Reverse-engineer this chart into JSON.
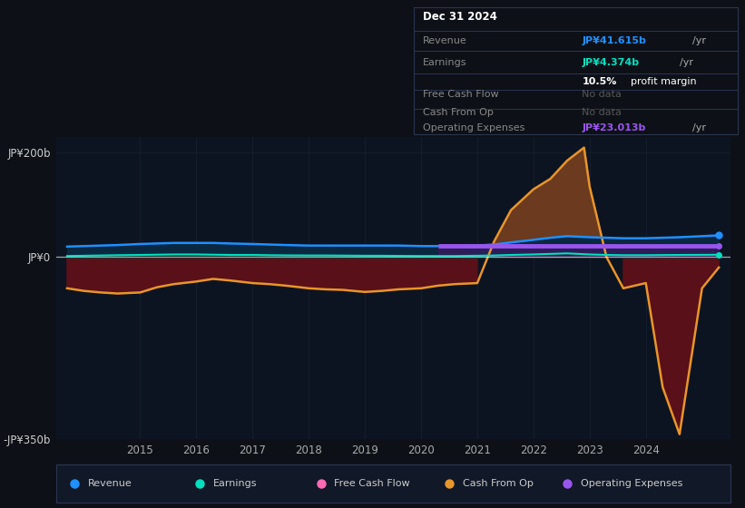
{
  "bg_color": "#0d1117",
  "plot_bg": "#0d1421",
  "ylim": [
    -350,
    230
  ],
  "yticks": [
    -350,
    0,
    200
  ],
  "ytick_labels": [
    "-JP¥350b",
    "JP¥0",
    "JP¥200b"
  ],
  "xlim": [
    2013.5,
    2025.5
  ],
  "xticks": [
    2015,
    2016,
    2017,
    2018,
    2019,
    2020,
    2021,
    2022,
    2023,
    2024
  ],
  "x": [
    2013.7,
    2014.0,
    2014.3,
    2014.6,
    2015.0,
    2015.3,
    2015.6,
    2016.0,
    2016.3,
    2016.6,
    2017.0,
    2017.3,
    2017.6,
    2018.0,
    2018.3,
    2018.6,
    2019.0,
    2019.3,
    2019.6,
    2020.0,
    2020.3,
    2020.6,
    2021.0,
    2021.3,
    2021.6,
    2022.0,
    2022.3,
    2022.6,
    2023.0,
    2023.3,
    2023.6,
    2024.0,
    2024.3,
    2024.6,
    2025.0,
    2025.3
  ],
  "revenue": [
    20,
    21,
    22,
    23,
    25,
    26,
    27,
    27,
    27,
    26,
    25,
    24,
    23,
    22,
    22,
    22,
    22,
    22,
    22,
    21,
    21,
    21,
    22,
    24,
    28,
    33,
    37,
    40,
    38,
    37,
    36,
    36,
    37,
    38,
    40,
    41.6
  ],
  "earnings": [
    2,
    2.5,
    3,
    3.5,
    4,
    4.5,
    5,
    5,
    4.5,
    4,
    4,
    3.5,
    3.2,
    3,
    3,
    2.8,
    2.5,
    2.5,
    2.2,
    2,
    2,
    2,
    2.5,
    3,
    4,
    5,
    6,
    7,
    5,
    4,
    3.5,
    3.5,
    3.8,
    4,
    4.2,
    4.374
  ],
  "cop_x": [
    2013.7,
    2014.0,
    2014.3,
    2014.6,
    2015.0,
    2015.3,
    2015.6,
    2016.0,
    2016.3,
    2016.6,
    2017.0,
    2017.3,
    2017.6,
    2018.0,
    2018.3,
    2018.6,
    2019.0,
    2019.3,
    2019.6,
    2020.0,
    2020.3,
    2020.6,
    2021.0,
    2021.3,
    2021.6,
    2022.0,
    2022.3,
    2022.6,
    2022.9,
    2023.0,
    2023.3,
    2023.6,
    2024.0,
    2024.3,
    2024.6,
    2025.0,
    2025.3
  ],
  "cop_y": [
    -60,
    -65,
    -68,
    -70,
    -68,
    -58,
    -52,
    -47,
    -42,
    -45,
    -50,
    -52,
    -55,
    -60,
    -62,
    -63,
    -67,
    -65,
    -62,
    -60,
    -55,
    -52,
    -50,
    30,
    90,
    130,
    150,
    185,
    210,
    135,
    0,
    -60,
    -50,
    -250,
    -340,
    -60,
    -20
  ],
  "op_x": [
    2020.3,
    2020.6,
    2021.0,
    2021.3,
    2021.6,
    2022.0,
    2022.3,
    2022.6,
    2023.0,
    2023.3,
    2023.6,
    2024.0,
    2024.3,
    2024.6,
    2025.0,
    2025.3
  ],
  "op_y": [
    22,
    22,
    22,
    22,
    22,
    22,
    22,
    22,
    22,
    22,
    22,
    22,
    22,
    22,
    22,
    22
  ],
  "revenue_color": "#1e90ff",
  "revenue_fill": "#0a2840",
  "earnings_color": "#00e0c0",
  "earnings_fill": "#082820",
  "cop_color": "#e8952a",
  "cop_fill_pos": "#6b3a1f",
  "cop_fill_neg": "#5a1018",
  "op_color": "#9955ee",
  "op_fill": "#3a1a60",
  "freecf_color": "#ff69b4",
  "info_bg": "#0d1117",
  "info_border": "#2a3550",
  "legend_bg": "#111827",
  "legend_border": "#2a3550"
}
